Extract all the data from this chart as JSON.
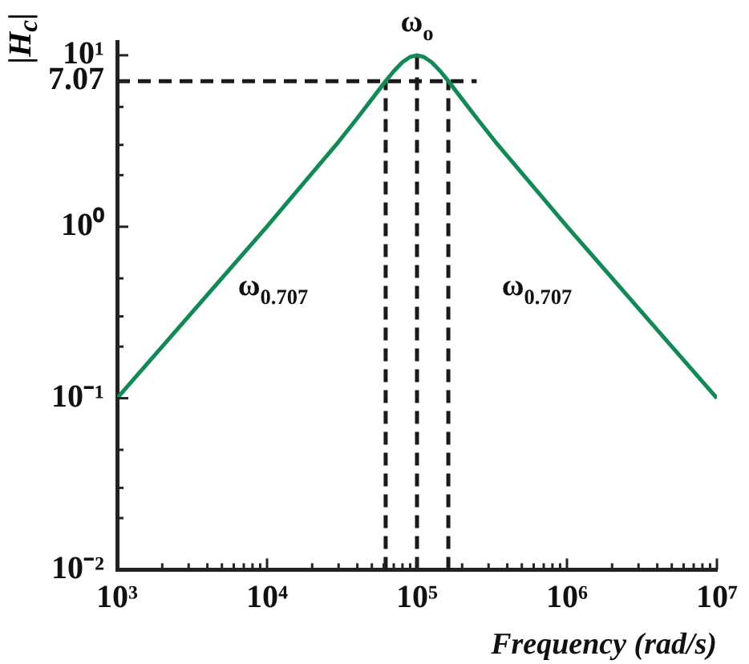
{
  "chart_data": {
    "type": "line",
    "xlabel": "Frequency (rad/s)",
    "ylabel": "|H$_{c}$|",
    "log": "xy",
    "grid": false,
    "legend": false,
    "marker": "none",
    "xlim": [
      1000,
      10000000
    ],
    "ylim": [
      0.01,
      12
    ],
    "xticks": [
      {
        "value": 1000,
        "label": "10³"
      },
      {
        "value": 2000,
        "label": null
      },
      {
        "value": 3000,
        "label": null
      },
      {
        "value": 4000,
        "label": null
      },
      {
        "value": 5000,
        "label": null
      },
      {
        "value": 6000,
        "label": null
      },
      {
        "value": 7000,
        "label": null
      },
      {
        "value": 8000,
        "label": null
      },
      {
        "value": 9000,
        "label": null
      },
      {
        "value": 10000,
        "label": "10⁴"
      },
      {
        "value": 20000,
        "label": null
      },
      {
        "value": 30000,
        "label": null
      },
      {
        "value": 40000,
        "label": null
      },
      {
        "value": 50000,
        "label": null
      },
      {
        "value": 60000,
        "label": null
      },
      {
        "value": 70000,
        "label": null
      },
      {
        "value": 80000,
        "label": null
      },
      {
        "value": 90000,
        "label": null
      },
      {
        "value": 100000,
        "label": "10⁵"
      },
      {
        "value": 200000,
        "label": null
      },
      {
        "value": 300000,
        "label": null
      },
      {
        "value": 400000,
        "label": null
      },
      {
        "value": 500000,
        "label": null
      },
      {
        "value": 600000,
        "label": null
      },
      {
        "value": 700000,
        "label": null
      },
      {
        "value": 800000,
        "label": null
      },
      {
        "value": 900000,
        "label": null
      },
      {
        "value": 1000000,
        "label": "10⁶"
      },
      {
        "value": 2000000,
        "label": null
      },
      {
        "value": 3000000,
        "label": null
      },
      {
        "value": 4000000,
        "label": null
      },
      {
        "value": 5000000,
        "label": null
      },
      {
        "value": 6000000,
        "label": null
      },
      {
        "value": 7000000,
        "label": null
      },
      {
        "value": 8000000,
        "label": null
      },
      {
        "value": 9000000,
        "label": null
      },
      {
        "value": 10000000,
        "label": "10⁷"
      }
    ],
    "yticks": [
      {
        "value": 0.01,
        "label": "10⁻²"
      },
      {
        "value": 0.02,
        "label": null
      },
      {
        "value": 0.03,
        "label": null
      },
      {
        "value": 0.05,
        "label": null
      },
      {
        "value": 0.1,
        "label": "10⁻¹"
      },
      {
        "value": 0.2,
        "label": null
      },
      {
        "value": 0.3,
        "label": null
      },
      {
        "value": 0.5,
        "label": null
      },
      {
        "value": 1,
        "label": "10⁰"
      },
      {
        "value": 2,
        "label": null
      },
      {
        "value": 3,
        "label": null
      },
      {
        "value": 5,
        "label": null
      },
      {
        "value": 7.07,
        "label": "7.07"
      },
      {
        "value": 10,
        "label": "10¹"
      }
    ],
    "series": [
      {
        "color": "#138a55",
        "line_style": "solid",
        "x": [
          1000,
          2000,
          10000,
          30000,
          40000,
          50000,
          61800,
          70000,
          80000,
          90000,
          100000,
          111000,
          125000,
          143000,
          161800,
          200000,
          250000,
          333000,
          1000000,
          5000000,
          10000000
        ],
        "values": [
          0.1,
          0.2,
          1.005,
          3.13,
          4.3,
          5.55,
          7.07,
          8.08,
          9.12,
          9.78,
          10,
          9.78,
          9.12,
          8.08,
          7.07,
          5.55,
          4.3,
          3.13,
          1.005,
          0.2,
          0.1
        ]
      },
      {
        "color": "#1a1a1a",
        "line_style": "dashed",
        "x": [
          1000,
          250000
        ],
        "values": [
          7.07,
          7.07
        ]
      },
      {
        "color": "#1a1a1a",
        "line_style": "dashed",
        "x": [
          61800,
          61800
        ],
        "values": [
          0.01,
          7.07
        ]
      },
      {
        "color": "#1a1a1a",
        "line_style": "dashed",
        "x": [
          100000,
          100000
        ],
        "values": [
          0.01,
          10
        ]
      },
      {
        "color": "#1a1a1a",
        "line_style": "dashed",
        "x": [
          161800,
          161800
        ],
        "values": [
          0.01,
          7.07
        ]
      }
    ],
    "annotations": [
      "ω$_{o}$",
      "ω$_{0.707}$",
      "ω$_{0.707}$"
    ]
  }
}
